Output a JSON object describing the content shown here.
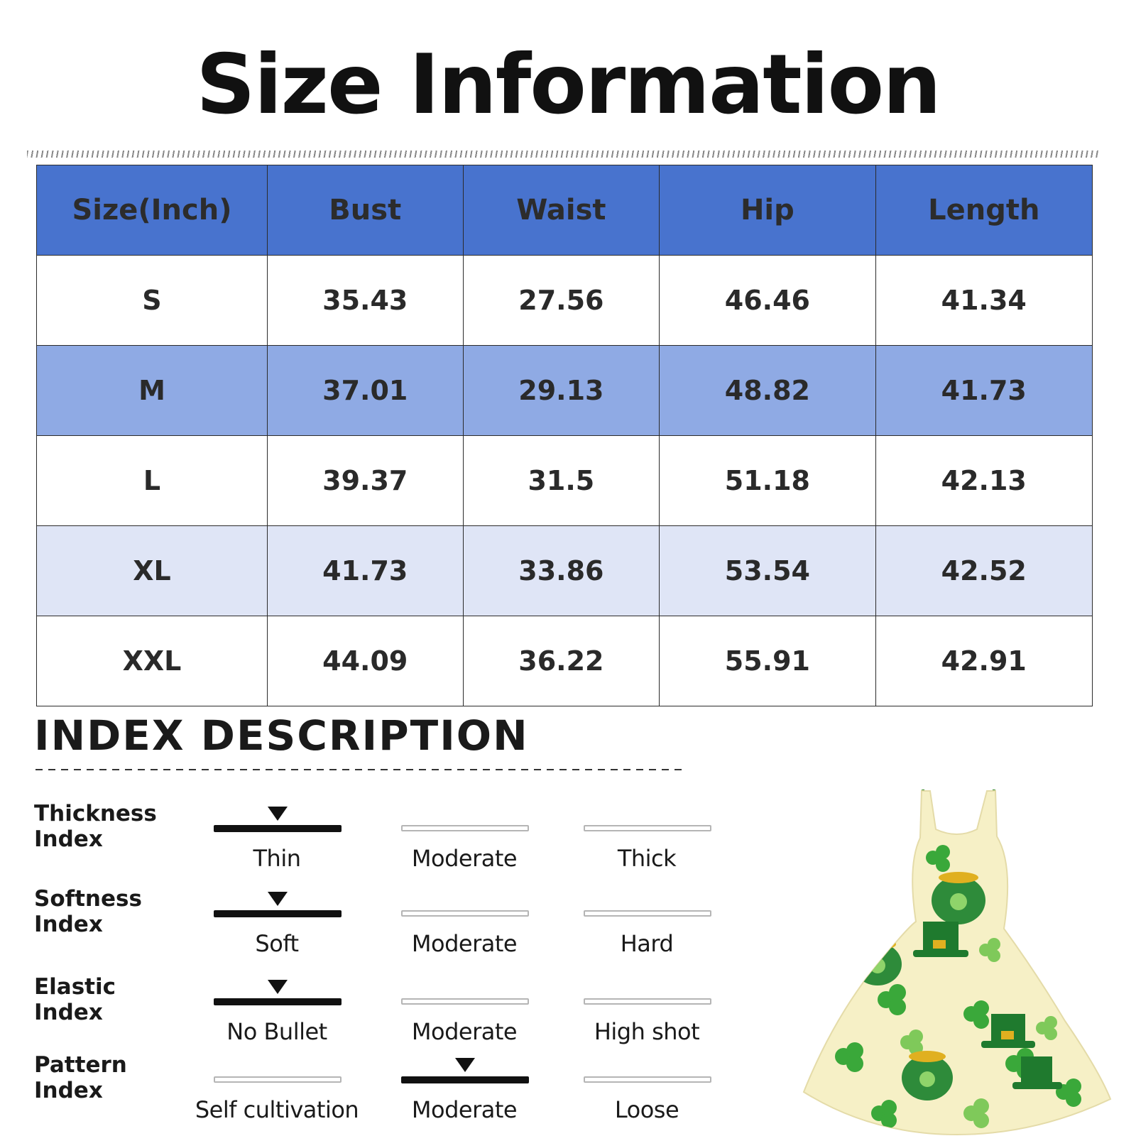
{
  "title": "Size Information",
  "size_table": {
    "headers": [
      "Size(Inch)",
      "Bust",
      "Waist",
      "Hip",
      "Length"
    ],
    "rows": [
      [
        "S",
        "35.43",
        "27.56",
        "46.46",
        "41.34"
      ],
      [
        "M",
        "37.01",
        "29.13",
        "48.82",
        "41.73"
      ],
      [
        "L",
        "39.37",
        "31.5",
        "51.18",
        "42.13"
      ],
      [
        "XL",
        "41.73",
        "33.86",
        "53.54",
        "42.52"
      ],
      [
        "XXL",
        "44.09",
        "36.22",
        "55.91",
        "42.91"
      ]
    ]
  },
  "index_description": {
    "title": "INDEX DESCRIPTION",
    "indices": [
      {
        "label_line1": "Thickness",
        "label_line2": "Index",
        "options": [
          "Thin",
          "Moderate",
          "Thick"
        ],
        "selected": 0
      },
      {
        "label_line1": "Softness",
        "label_line2": "Index",
        "options": [
          "Soft",
          "Moderate",
          "Hard"
        ],
        "selected": 0
      },
      {
        "label_line1": "Elastic",
        "label_line2": "Index",
        "options": [
          "No Bullet",
          "Moderate",
          "High shot"
        ],
        "selected": 0
      },
      {
        "label_line1": "Pattern",
        "label_line2": "Index",
        "options": [
          "Self cultivation",
          "Moderate",
          "Loose"
        ],
        "selected": 1
      }
    ]
  },
  "colors": {
    "header_blue": "#4873ce",
    "row_blue": "#8faae4",
    "row_light": "#dfe5f6"
  },
  "product_image": "shamrock-print-dress"
}
